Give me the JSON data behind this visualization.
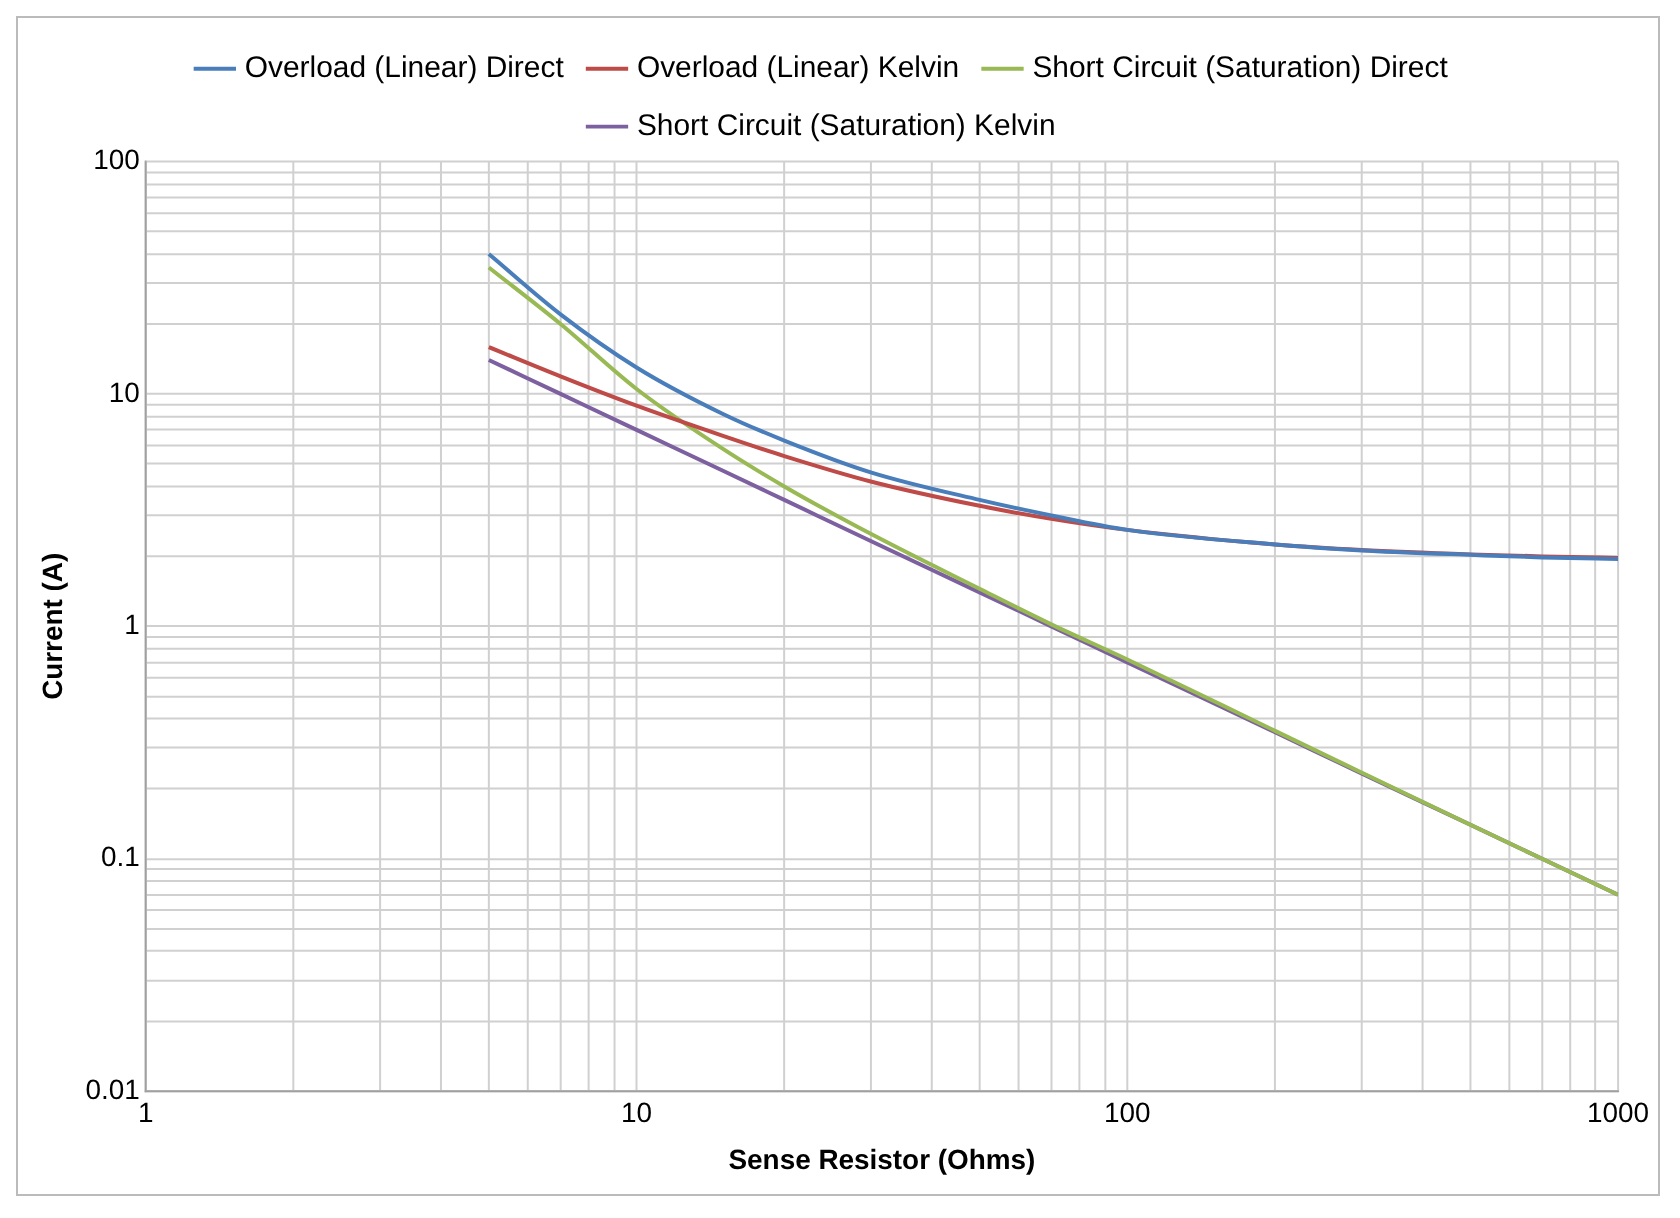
{
  "chart_data": {
    "type": "line",
    "xlabel": "Sense Resistor (Ohms)",
    "ylabel": "Current (A)",
    "log": "xy",
    "grid": true,
    "legend": "top",
    "marker": "none",
    "line_style": "solid",
    "x": [
      5,
      7,
      10,
      15,
      20,
      30,
      50,
      70,
      100,
      200,
      300,
      500,
      700,
      1000
    ],
    "xlim": [
      1,
      1000
    ],
    "ylim": [
      0.01,
      100
    ],
    "xticks": [
      1,
      {
        "value": 2,
        "label": null
      },
      {
        "value": 3,
        "label": null
      },
      {
        "value": 4,
        "label": null
      },
      {
        "value": 5,
        "label": null
      },
      {
        "value": 6,
        "label": null
      },
      {
        "value": 7,
        "label": null
      },
      {
        "value": 8,
        "label": null
      },
      {
        "value": 9,
        "label": null
      },
      10,
      {
        "value": 20,
        "label": null
      },
      {
        "value": 30,
        "label": null
      },
      {
        "value": 40,
        "label": null
      },
      {
        "value": 50,
        "label": null
      },
      {
        "value": 60,
        "label": null
      },
      {
        "value": 70,
        "label": null
      },
      {
        "value": 80,
        "label": null
      },
      {
        "value": 90,
        "label": null
      },
      100,
      {
        "value": 200,
        "label": null
      },
      {
        "value": 300,
        "label": null
      },
      {
        "value": 400,
        "label": null
      },
      {
        "value": 500,
        "label": null
      },
      {
        "value": 600,
        "label": null
      },
      {
        "value": 700,
        "label": null
      },
      {
        "value": 800,
        "label": null
      },
      {
        "value": 900,
        "label": null
      },
      1000
    ],
    "yticks": [
      0.01,
      {
        "value": 0.02,
        "label": null
      },
      {
        "value": 0.03,
        "label": null
      },
      {
        "value": 0.04,
        "label": null
      },
      {
        "value": 0.05,
        "label": null
      },
      {
        "value": 0.06,
        "label": null
      },
      {
        "value": 0.07,
        "label": null
      },
      {
        "value": 0.08,
        "label": null
      },
      {
        "value": 0.09,
        "label": null
      },
      0.1,
      {
        "value": 0.2,
        "label": null
      },
      {
        "value": 0.3,
        "label": null
      },
      {
        "value": 0.4,
        "label": null
      },
      {
        "value": 0.5,
        "label": null
      },
      {
        "value": 0.6,
        "label": null
      },
      {
        "value": 0.7,
        "label": null
      },
      {
        "value": 0.8,
        "label": null
      },
      {
        "value": 0.9,
        "label": null
      },
      1,
      {
        "value": 2,
        "label": null
      },
      {
        "value": 3,
        "label": null
      },
      {
        "value": 4,
        "label": null
      },
      {
        "value": 5,
        "label": null
      },
      {
        "value": 6,
        "label": null
      },
      {
        "value": 7,
        "label": null
      },
      {
        "value": 8,
        "label": null
      },
      {
        "value": 9,
        "label": null
      },
      10,
      {
        "value": 20,
        "label": null
      },
      {
        "value": 30,
        "label": null
      },
      {
        "value": 40,
        "label": null
      },
      {
        "value": 50,
        "label": null
      },
      {
        "value": 60,
        "label": null
      },
      {
        "value": 70,
        "label": null
      },
      {
        "value": 80,
        "label": null
      },
      {
        "value": 90,
        "label": null
      },
      100
    ],
    "series": [
      {
        "name": "Overload (Linear) Direct",
        "color": "#4a7ebb",
        "values": [
          40,
          22,
          13,
          8.2,
          6.3,
          4.6,
          3.5,
          3.0,
          2.6,
          2.25,
          2.12,
          2.03,
          1.98,
          1.95
        ]
      },
      {
        "name": "Overload (Linear) Kelvin",
        "color": "#be4b48",
        "values": [
          15.9,
          11.9,
          8.9,
          6.6,
          5.4,
          4.2,
          3.3,
          2.9,
          2.6,
          2.25,
          2.13,
          2.04,
          2.0,
          1.97
        ]
      },
      {
        "name": "Short Circuit (Saturation) Direct",
        "color": "#98b954",
        "values": [
          35,
          20,
          10.5,
          5.8,
          4.0,
          2.5,
          1.45,
          1.02,
          0.72,
          0.355,
          0.235,
          0.14,
          0.1,
          0.07
        ]
      },
      {
        "name": "Short Circuit (Saturation) Kelvin",
        "color": "#7d60a0",
        "values": [
          14,
          10,
          7,
          4.67,
          3.5,
          2.33,
          1.4,
          1.0,
          0.7,
          0.35,
          0.233,
          0.14,
          0.1,
          0.07
        ]
      }
    ]
  }
}
